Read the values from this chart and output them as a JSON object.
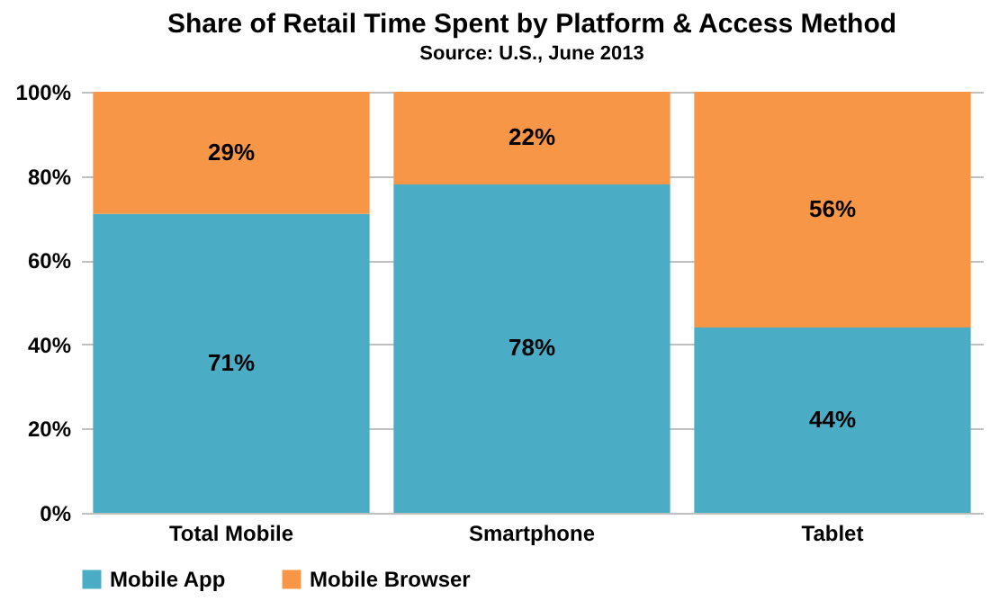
{
  "chart_data": {
    "type": "bar",
    "title": "Share of Retail Time Spent by Platform & Access Method",
    "subtitle": "Source: U.S., June 2013",
    "categories": [
      "Total Mobile",
      "Smartphone",
      "Tablet"
    ],
    "stacked": true,
    "series": [
      {
        "name": "Mobile App",
        "color": "#4bacc6",
        "values": [
          71,
          78,
          44
        ],
        "value_labels": [
          "71%",
          "78%",
          "44%"
        ]
      },
      {
        "name": "Mobile Browser",
        "color": "#f79646",
        "values": [
          29,
          22,
          56
        ],
        "value_labels": [
          "29%",
          "22%",
          "56%"
        ]
      }
    ],
    "ylim": [
      0,
      100
    ],
    "yticks": [
      {
        "value": 0,
        "label": "0%"
      },
      {
        "value": 20,
        "label": "20%"
      },
      {
        "value": 40,
        "label": "40%"
      },
      {
        "value": 60,
        "label": "60%"
      },
      {
        "value": 80,
        "label": "80%"
      },
      {
        "value": 100,
        "label": "100%"
      }
    ],
    "grid": "y",
    "legend": "bottom"
  }
}
